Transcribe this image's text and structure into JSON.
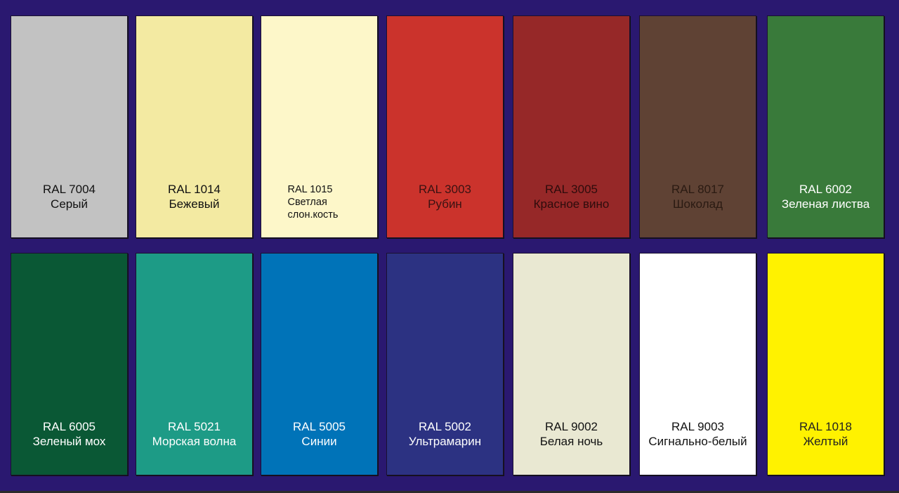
{
  "swatches": [
    {
      "code": "RAL 7004",
      "name": "Серый",
      "color": "#c2c2c2",
      "text_color": "#111111"
    },
    {
      "code": "RAL 1014",
      "name": "Бежевый",
      "color": "#f3eaa2",
      "text_color": "#111111"
    },
    {
      "code": "RAL 1015",
      "name": "Светлая слон.кость",
      "color": "#fdf7c9",
      "text_color": "#111111",
      "small": true
    },
    {
      "code": "RAL 3003",
      "name": "Рубин",
      "color": "#cb332c",
      "text_color": "#3a1212"
    },
    {
      "code": "RAL 3005",
      "name": "Красное вино",
      "color": "#962828",
      "text_color": "#2e0c0c"
    },
    {
      "code": "RAL 8017",
      "name": "Шоколад",
      "color": "#5f4234",
      "text_color": "#2a1a12"
    },
    {
      "code": "RAL 6002",
      "name": "Зеленая листва",
      "color": "#397a3a",
      "text_color": "#ffffff"
    },
    {
      "code": "RAL 6005",
      "name": "Зеленый мох",
      "color": "#0a5835",
      "text_color": "#ffffff"
    },
    {
      "code": "RAL 5021",
      "name": "Морская волна",
      "color": "#1d9b86",
      "text_color": "#ffffff"
    },
    {
      "code": "RAL 5005",
      "name": "Синии",
      "color": "#0073b8",
      "text_color": "#ffffff"
    },
    {
      "code": "RAL 5002",
      "name": "Ультрамарин",
      "color": "#2c3282",
      "text_color": "#ffffff"
    },
    {
      "code": "RAL 9002",
      "name": "Белая ночь",
      "color": "#e9e8d2",
      "text_color": "#111111"
    },
    {
      "code": "RAL 9003",
      "name": "Сигнально-белый",
      "color": "#ffffff",
      "text_color": "#111111"
    },
    {
      "code": "RAL 1018",
      "name": "Желтый",
      "color": "#fff200",
      "text_color": "#222222"
    }
  ],
  "background_color": "#2a1870"
}
